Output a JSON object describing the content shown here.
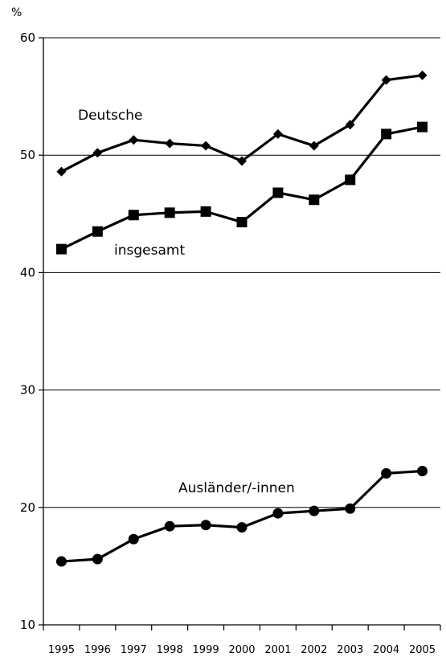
{
  "chart_data": {
    "type": "line",
    "title": "",
    "ylabel": "%",
    "xlabel": "",
    "ylim": [
      10,
      60
    ],
    "yticks": [
      10,
      20,
      30,
      40,
      50,
      60
    ],
    "grid": "horizontal",
    "x": [
      "1995",
      "1996",
      "1997",
      "1998",
      "1999",
      "2000",
      "2001",
      "2002",
      "2003",
      "2004",
      "2005"
    ],
    "series": [
      {
        "name": "Deutsche",
        "marker": "diamond",
        "values": [
          48.6,
          50.2,
          51.3,
          51.0,
          50.8,
          49.5,
          51.8,
          50.8,
          52.6,
          56.4,
          56.8
        ]
      },
      {
        "name": "insgesamt",
        "marker": "square",
        "values": [
          42.0,
          43.5,
          44.9,
          45.1,
          45.2,
          44.3,
          46.8,
          46.2,
          47.9,
          51.8,
          52.4
        ]
      },
      {
        "name": "Ausländer/-innen",
        "marker": "circle",
        "values": [
          15.4,
          15.6,
          17.3,
          18.4,
          18.5,
          18.3,
          19.5,
          19.7,
          19.9,
          22.9,
          23.1
        ]
      }
    ],
    "colors": {
      "line": "#000000",
      "grid": "#000000"
    }
  }
}
